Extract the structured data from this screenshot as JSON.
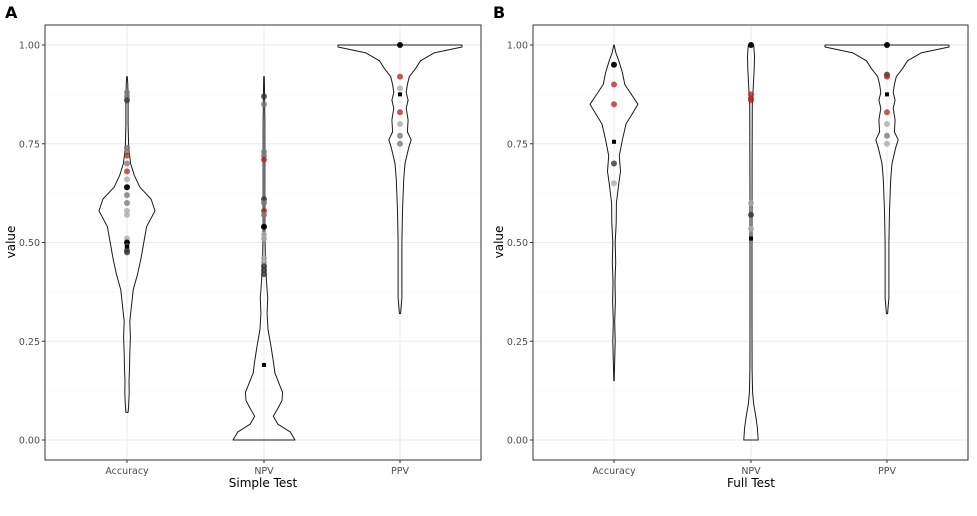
{
  "chart_data": [
    {
      "type": "violin",
      "panel_label": "A",
      "xlabel": "Simple Test",
      "ylabel": "value",
      "ylim": [
        0,
        1
      ],
      "y_ticks": [
        "0.00",
        "0.25",
        "0.50",
        "0.75",
        "1.00"
      ],
      "categories": [
        "Accuracy",
        "NPV",
        "PPV"
      ],
      "grid": true,
      "violins": [
        {
          "category": "Accuracy",
          "density": [
            [
              0.07,
              0.04
            ],
            [
              0.09,
              0.06
            ],
            [
              0.12,
              0.08
            ],
            [
              0.15,
              0.07
            ],
            [
              0.18,
              0.09
            ],
            [
              0.22,
              0.1
            ],
            [
              0.26,
              0.12
            ],
            [
              0.3,
              0.1
            ],
            [
              0.34,
              0.16
            ],
            [
              0.38,
              0.22
            ],
            [
              0.42,
              0.38
            ],
            [
              0.46,
              0.5
            ],
            [
              0.5,
              0.6
            ],
            [
              0.54,
              0.7
            ],
            [
              0.58,
              1.0
            ],
            [
              0.61,
              0.86
            ],
            [
              0.64,
              0.46
            ],
            [
              0.67,
              0.26
            ],
            [
              0.7,
              0.13
            ],
            [
              0.74,
              0.06
            ],
            [
              0.8,
              0.04
            ],
            [
              0.86,
              0.04
            ],
            [
              0.9,
              0.03
            ],
            [
              0.92,
              0.01
            ]
          ],
          "points": [
            {
              "y": 0.88,
              "shade": "gray"
            },
            {
              "y": 0.87,
              "shade": "gray"
            },
            {
              "y": 0.86,
              "shade": "dark"
            },
            {
              "y": 0.74,
              "shade": "gray"
            },
            {
              "y": 0.73,
              "shade": "gray"
            },
            {
              "y": 0.72,
              "shade": "red"
            },
            {
              "y": 0.7,
              "shade": "gray"
            },
            {
              "y": 0.68,
              "shade": "red"
            },
            {
              "y": 0.66,
              "shade": "light"
            },
            {
              "y": 0.64,
              "shade": "black"
            },
            {
              "y": 0.62,
              "shade": "gray"
            },
            {
              "y": 0.6,
              "shade": "gray"
            },
            {
              "y": 0.58,
              "shade": "light"
            },
            {
              "y": 0.57,
              "shade": "light"
            },
            {
              "y": 0.51,
              "shade": "light"
            },
            {
              "y": 0.5,
              "shade": "black"
            },
            {
              "y": 0.49,
              "shade": "light"
            },
            {
              "y": 0.48,
              "shade": "dark"
            },
            {
              "y": 0.475,
              "shade": "dark"
            }
          ],
          "mean": 0.49
        },
        {
          "category": "NPV",
          "density": [
            [
              0.0,
              1.0
            ],
            [
              0.02,
              0.85
            ],
            [
              0.04,
              0.45
            ],
            [
              0.06,
              0.3
            ],
            [
              0.08,
              0.45
            ],
            [
              0.1,
              0.58
            ],
            [
              0.12,
              0.6
            ],
            [
              0.14,
              0.5
            ],
            [
              0.17,
              0.35
            ],
            [
              0.2,
              0.3
            ],
            [
              0.24,
              0.22
            ],
            [
              0.28,
              0.13
            ],
            [
              0.32,
              0.1
            ],
            [
              0.36,
              0.12
            ],
            [
              0.4,
              0.08
            ],
            [
              0.44,
              0.05
            ],
            [
              0.48,
              0.04
            ],
            [
              0.52,
              0.03
            ],
            [
              0.6,
              0.03
            ],
            [
              0.7,
              0.03
            ],
            [
              0.8,
              0.03
            ],
            [
              0.87,
              0.02
            ],
            [
              0.92,
              0.01
            ]
          ],
          "points": [
            {
              "y": 0.87,
              "shade": "dark"
            },
            {
              "y": 0.85,
              "shade": "gray"
            },
            {
              "y": 0.73,
              "shade": "gray"
            },
            {
              "y": 0.72,
              "shade": "gray"
            },
            {
              "y": 0.71,
              "shade": "red"
            },
            {
              "y": 0.61,
              "shade": "dark"
            },
            {
              "y": 0.6,
              "shade": "gray"
            },
            {
              "y": 0.58,
              "shade": "red"
            },
            {
              "y": 0.57,
              "shade": "gray"
            },
            {
              "y": 0.54,
              "shade": "black"
            },
            {
              "y": 0.52,
              "shade": "light"
            },
            {
              "y": 0.51,
              "shade": "light"
            },
            {
              "y": 0.46,
              "shade": "light"
            },
            {
              "y": 0.45,
              "shade": "light"
            },
            {
              "y": 0.44,
              "shade": "dark"
            },
            {
              "y": 0.43,
              "shade": "dark"
            },
            {
              "y": 0.42,
              "shade": "dark"
            }
          ],
          "mean": 0.19
        },
        {
          "category": "PPV",
          "density": [
            [
              0.32,
              0.01
            ],
            [
              0.36,
              0.03
            ],
            [
              0.42,
              0.03
            ],
            [
              0.5,
              0.03
            ],
            [
              0.58,
              0.04
            ],
            [
              0.62,
              0.05
            ],
            [
              0.66,
              0.06
            ],
            [
              0.7,
              0.08
            ],
            [
              0.74,
              0.14
            ],
            [
              0.76,
              0.18
            ],
            [
              0.78,
              0.12
            ],
            [
              0.81,
              0.13
            ],
            [
              0.84,
              0.1
            ],
            [
              0.86,
              0.13
            ],
            [
              0.88,
              0.1
            ],
            [
              0.9,
              0.12
            ],
            [
              0.92,
              0.15
            ],
            [
              0.94,
              0.25
            ],
            [
              0.96,
              0.33
            ],
            [
              0.98,
              0.55
            ],
            [
              0.995,
              1.0
            ],
            [
              1.0,
              1.0
            ]
          ],
          "points": [
            {
              "y": 1.0,
              "shade": "black"
            },
            {
              "y": 0.92,
              "shade": "red"
            },
            {
              "y": 0.89,
              "shade": "light"
            },
            {
              "y": 0.83,
              "shade": "red"
            },
            {
              "y": 0.8,
              "shade": "light"
            },
            {
              "y": 0.77,
              "shade": "gray"
            },
            {
              "y": 0.75,
              "shade": "gray"
            }
          ],
          "mean": 0.875
        }
      ]
    },
    {
      "type": "violin",
      "panel_label": "B",
      "xlabel": "Full Test",
      "ylabel": "value",
      "ylim": [
        0,
        1
      ],
      "y_ticks": [
        "0.00",
        "0.25",
        "0.50",
        "0.75",
        "1.00"
      ],
      "categories": [
        "Accuracy",
        "NPV",
        "PPV"
      ],
      "grid": true,
      "violins": [
        {
          "category": "Accuracy",
          "density": [
            [
              0.15,
              0.01
            ],
            [
              0.2,
              0.03
            ],
            [
              0.25,
              0.05
            ],
            [
              0.3,
              0.03
            ],
            [
              0.35,
              0.06
            ],
            [
              0.4,
              0.04
            ],
            [
              0.45,
              0.07
            ],
            [
              0.5,
              0.05
            ],
            [
              0.55,
              0.09
            ],
            [
              0.6,
              0.1
            ],
            [
              0.65,
              0.2
            ],
            [
              0.68,
              0.27
            ],
            [
              0.72,
              0.22
            ],
            [
              0.76,
              0.35
            ],
            [
              0.8,
              0.5
            ],
            [
              0.83,
              0.8
            ],
            [
              0.85,
              1.0
            ],
            [
              0.87,
              0.78
            ],
            [
              0.9,
              0.45
            ],
            [
              0.93,
              0.35
            ],
            [
              0.96,
              0.2
            ],
            [
              0.98,
              0.08
            ],
            [
              1.0,
              0.01
            ]
          ],
          "points": [
            {
              "y": 0.95,
              "shade": "black"
            },
            {
              "y": 0.9,
              "shade": "red"
            },
            {
              "y": 0.85,
              "shade": "red"
            },
            {
              "y": 0.7,
              "shade": "dark"
            },
            {
              "y": 0.65,
              "shade": "light"
            }
          ],
          "mean": 0.755
        },
        {
          "category": "NPV",
          "density": [
            [
              0.0,
              0.45
            ],
            [
              0.03,
              0.4
            ],
            [
              0.06,
              0.3
            ],
            [
              0.09,
              0.17
            ],
            [
              0.12,
              0.1
            ],
            [
              0.18,
              0.07
            ],
            [
              0.3,
              0.06
            ],
            [
              0.5,
              0.06
            ],
            [
              0.7,
              0.07
            ],
            [
              0.85,
              0.08
            ],
            [
              0.9,
              0.15
            ],
            [
              0.94,
              0.2
            ],
            [
              0.97,
              0.22
            ],
            [
              1.0,
              0.17
            ]
          ],
          "points": [
            {
              "y": 1.0,
              "shade": "black"
            },
            {
              "y": 0.875,
              "shade": "red"
            },
            {
              "y": 0.865,
              "shade": "red"
            },
            {
              "y": 0.86,
              "shade": "red"
            },
            {
              "y": 0.6,
              "shade": "light"
            },
            {
              "y": 0.57,
              "shade": "dark"
            },
            {
              "y": 0.535,
              "shade": "light"
            }
          ],
          "mean": 0.51
        },
        {
          "category": "PPV",
          "density": [
            [
              0.32,
              0.01
            ],
            [
              0.36,
              0.03
            ],
            [
              0.42,
              0.03
            ],
            [
              0.5,
              0.03
            ],
            [
              0.58,
              0.04
            ],
            [
              0.62,
              0.05
            ],
            [
              0.66,
              0.06
            ],
            [
              0.7,
              0.08
            ],
            [
              0.74,
              0.14
            ],
            [
              0.76,
              0.18
            ],
            [
              0.78,
              0.12
            ],
            [
              0.81,
              0.13
            ],
            [
              0.84,
              0.1
            ],
            [
              0.86,
              0.13
            ],
            [
              0.88,
              0.1
            ],
            [
              0.9,
              0.12
            ],
            [
              0.92,
              0.15
            ],
            [
              0.94,
              0.25
            ],
            [
              0.96,
              0.33
            ],
            [
              0.98,
              0.55
            ],
            [
              0.995,
              1.0
            ],
            [
              1.0,
              1.0
            ]
          ],
          "points": [
            {
              "y": 1.0,
              "shade": "black"
            },
            {
              "y": 0.925,
              "shade": "dark"
            },
            {
              "y": 0.92,
              "shade": "red"
            },
            {
              "y": 0.83,
              "shade": "red"
            },
            {
              "y": 0.8,
              "shade": "light"
            },
            {
              "y": 0.77,
              "shade": "gray"
            },
            {
              "y": 0.75,
              "shade": "light"
            }
          ],
          "mean": 0.875
        }
      ]
    }
  ],
  "colors": {
    "panel_border": "#333333",
    "grid_major": "#ebebeb",
    "grid_minor": "#f5f5f5",
    "violin_outline": "#1a1a1a",
    "mean_marker": "#000000",
    "point_black": "#000000",
    "point_dark": "#333333",
    "point_gray": "#7a7a7a",
    "point_light": "#ababab",
    "point_red": "#b22222"
  }
}
